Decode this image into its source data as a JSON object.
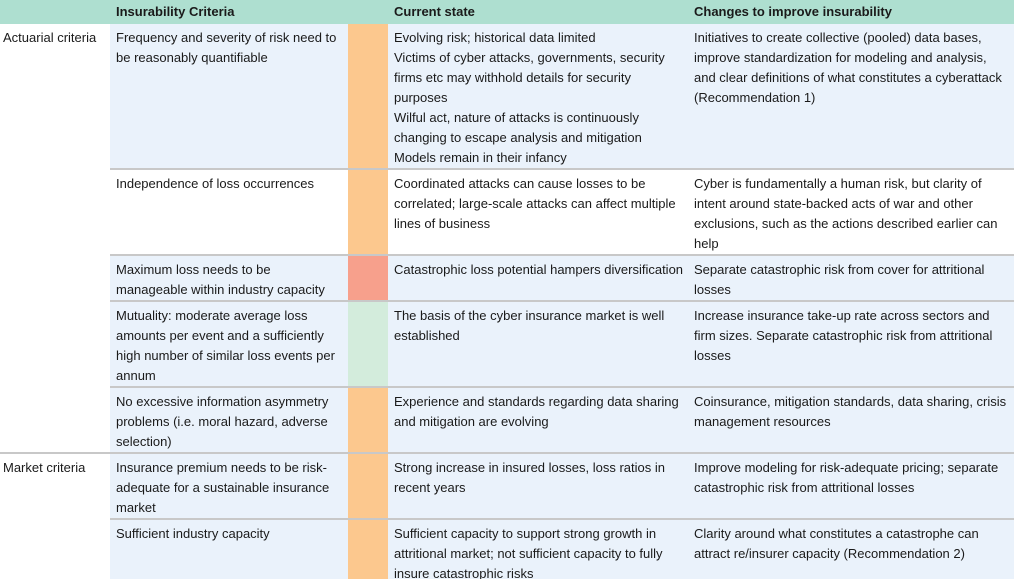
{
  "header": {
    "col0": "",
    "col1": "Insurability Criteria",
    "col2": "",
    "col3": "Current state",
    "col4": "Changes to improve insurability"
  },
  "rows": [
    {
      "category": "Actuarial criteria",
      "criteria": "Frequency and severity of risk need to be reasonably quantifiable",
      "indicator": "orange",
      "current_state": [
        "Evolving risk; historical data limited",
        "Victims of cyber attacks, governments, security firms etc may withhold details for security purposes",
        "Wilful act, nature of attacks is continuously changing to escape analysis and mitigation",
        "Models remain in their infancy"
      ],
      "changes": "Initiatives to create collective (pooled) data bases, improve standardization for modeling and analysis, and clear definitions of what constitutes a cyberattack (Recommendation 1)"
    },
    {
      "category": "",
      "criteria": "Independence of loss occurrences",
      "indicator": "orange",
      "current_state": [
        "Coordinated attacks can cause losses to be correlated; large-scale attacks can affect multiple lines of business"
      ],
      "changes": "Cyber is fundamentally a human risk, but clarity of intent around state-backed acts of war and other exclusions, such as the actions described earlier can help"
    },
    {
      "category": "",
      "criteria": "Maximum loss needs to be manageable within industry capacity",
      "indicator": "red",
      "current_state": [
        "Catastrophic loss potential hampers diversification"
      ],
      "changes": "Separate catastrophic risk from cover for attritional losses"
    },
    {
      "category": "",
      "criteria": "Mutuality: moderate average loss amounts per event and a sufficiently high number of similar loss events per annum",
      "indicator": "green",
      "current_state": [
        "The basis of the cyber insurance market is well established"
      ],
      "changes": "Increase insurance take-up rate across sectors and firm sizes. Separate catastrophic risk from attritional losses"
    },
    {
      "category": "",
      "criteria": "No excessive information asymmetry problems (i.e. moral hazard, adverse selection)",
      "indicator": "orange",
      "current_state": [
        "Experience and standards regarding data sharing and mitigation are evolving"
      ],
      "changes": "Coinsurance, mitigation standards, data sharing, crisis management resources"
    },
    {
      "category": "Market criteria",
      "criteria": "Insurance premium needs to be risk-adequate for a sustainable insurance market",
      "indicator": "orange",
      "current_state": [
        "Strong increase in insured losses, loss ratios in recent years"
      ],
      "changes": "Improve modeling for risk-adequate pricing; separate catastrophic risk from attritional losses"
    },
    {
      "category": "",
      "criteria": "Sufficient industry capacity",
      "indicator": "orange",
      "current_state": [
        "Sufficient capacity to support strong growth in attritional market; not sufficient capacity to fully insure catastrophic risks"
      ],
      "changes": "Clarity around what constitutes a catastrophe can attract re/insurer capacity (Recommendation 2)"
    }
  ],
  "colors": {
    "header_bg": "#aedfd0",
    "row_bg": "#eaf2fb",
    "orange": "#fcc88e",
    "red": "#f7a08c",
    "green": "#d3ecdc"
  }
}
